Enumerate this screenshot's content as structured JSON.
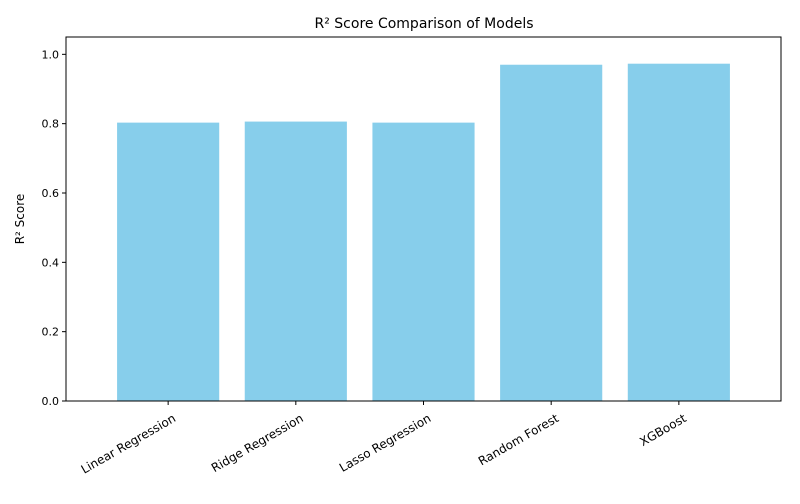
{
  "chart_data": {
    "type": "bar",
    "title": "R² Score Comparison of Models",
    "xlabel": "",
    "ylabel": "R² Score",
    "categories": [
      "Linear Regression",
      "Ridge Regression",
      "Lasso Regression",
      "Random Forest",
      "XGBoost"
    ],
    "values": [
      0.803,
      0.806,
      0.803,
      0.97,
      0.973
    ],
    "ylim": [
      0,
      1.05
    ],
    "yticks": [
      0.0,
      0.2,
      0.4,
      0.6,
      0.8,
      1.0
    ],
    "ytick_labels": [
      "0.0",
      "0.2",
      "0.4",
      "0.6",
      "0.8",
      "1.0"
    ],
    "grid": false,
    "bar_color": "#87CEEB",
    "xtick_rotation_deg": 30
  }
}
